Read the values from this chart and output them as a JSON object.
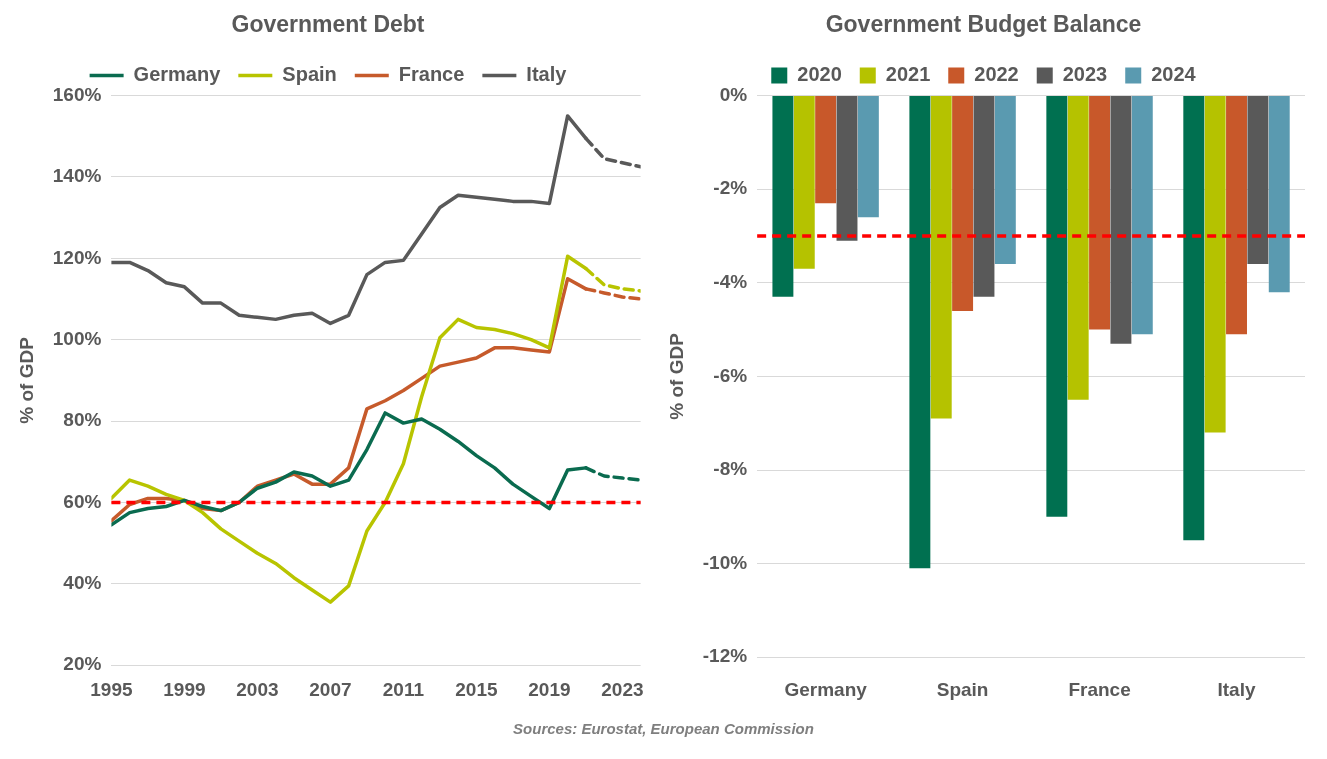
{
  "chart_data": [
    {
      "type": "line",
      "title": "Government Debt",
      "ylabel": "% of GDP",
      "xlim": [
        1995,
        2024
      ],
      "xticks": [
        1995,
        1999,
        2003,
        2007,
        2011,
        2015,
        2019,
        2023
      ],
      "ylim": [
        20,
        160
      ],
      "yticks": [
        {
          "value": 20,
          "label": "20%"
        },
        {
          "value": 40,
          "label": "40%"
        },
        {
          "value": 60,
          "label": "60%"
        },
        {
          "value": 80,
          "label": "80%"
        },
        {
          "value": 100,
          "label": "100%"
        },
        {
          "value": 120,
          "label": "120%"
        },
        {
          "value": 140,
          "label": "140%"
        },
        {
          "value": 160,
          "label": "160%"
        }
      ],
      "grid": "y",
      "legend": "top",
      "marker": "none",
      "line_style": "solid",
      "series": [
        {
          "name": "Germany",
          "color": "#0a6b4f",
          "x": [
            1995,
            1996,
            1997,
            1998,
            1999,
            2000,
            2001,
            2002,
            2003,
            2004,
            2005,
            2006,
            2007,
            2008,
            2009,
            2010,
            2011,
            2012,
            2013,
            2014,
            2015,
            2016,
            2017,
            2018,
            2019,
            2020,
            2021
          ],
          "values": [
            54.5,
            57.5,
            58.5,
            59,
            60.5,
            59,
            58,
            60,
            63.5,
            65,
            67.5,
            66.5,
            64,
            65.5,
            73,
            82,
            79.5,
            80.5,
            78,
            75,
            71.5,
            68.5,
            64.5,
            61.5,
            58.5,
            68,
            68.5
          ]
        },
        {
          "name": "Spain",
          "color": "#b8c400",
          "x": [
            1995,
            1996,
            1997,
            1998,
            1999,
            2000,
            2001,
            2002,
            2003,
            2004,
            2005,
            2006,
            2007,
            2008,
            2009,
            2010,
            2011,
            2012,
            2013,
            2014,
            2015,
            2016,
            2017,
            2018,
            2019,
            2020,
            2021
          ],
          "values": [
            61,
            65.5,
            64,
            62,
            60.5,
            57.5,
            53.5,
            50.5,
            47.5,
            45,
            41.5,
            38.5,
            35.5,
            39.5,
            53,
            60,
            69.5,
            86,
            100.5,
            105,
            103,
            102.5,
            101.5,
            100,
            98,
            120.5,
            117.5
          ]
        },
        {
          "name": "France",
          "color": "#c65a2b",
          "x": [
            1995,
            1996,
            1997,
            1998,
            1999,
            2000,
            2001,
            2002,
            2003,
            2004,
            2005,
            2006,
            2007,
            2008,
            2009,
            2010,
            2011,
            2012,
            2013,
            2014,
            2015,
            2016,
            2017,
            2018,
            2019,
            2020,
            2021
          ],
          "values": [
            55.5,
            59.5,
            61,
            61,
            60.5,
            58.5,
            58,
            60,
            64,
            65.5,
            67,
            64.5,
            64.5,
            68.5,
            83,
            85,
            87.5,
            90.5,
            93.5,
            94.5,
            95.5,
            98,
            98,
            97.5,
            97,
            115,
            112.5
          ]
        },
        {
          "name": "Italy",
          "color": "#595959",
          "x": [
            1995,
            1996,
            1997,
            1998,
            1999,
            2000,
            2001,
            2002,
            2003,
            2004,
            2005,
            2006,
            2007,
            2008,
            2009,
            2010,
            2011,
            2012,
            2013,
            2014,
            2015,
            2016,
            2017,
            2018,
            2019,
            2020,
            2021
          ],
          "values": [
            119,
            119,
            117,
            114,
            113,
            109,
            109,
            106,
            105.5,
            105,
            106,
            106.5,
            104,
            106,
            116,
            119,
            119.5,
            126,
            132.5,
            135.5,
            135,
            134.5,
            134,
            134,
            133.5,
            155,
            149.5
          ]
        },
        {
          "color": "#0a6b4f",
          "line_style": "dashed",
          "x": [
            2021,
            2022,
            2023,
            2024
          ],
          "values": [
            68.5,
            66.5,
            66,
            65.5
          ]
        },
        {
          "color": "#b8c400",
          "line_style": "dashed",
          "x": [
            2021,
            2022,
            2023,
            2024
          ],
          "values": [
            117.5,
            113.5,
            112.5,
            112
          ]
        },
        {
          "color": "#c65a2b",
          "line_style": "dashed",
          "x": [
            2021,
            2022,
            2023,
            2024
          ],
          "values": [
            112.5,
            111.5,
            110.5,
            110
          ]
        },
        {
          "color": "#595959",
          "line_style": "dashed",
          "x": [
            2021,
            2022,
            2023,
            2024
          ],
          "values": [
            149.5,
            144.5,
            143.5,
            142.5
          ]
        }
      ],
      "ref_lines": [
        {
          "axis": "y",
          "value": 60,
          "color": "#ff0000",
          "line_style": "dashed"
        }
      ]
    },
    {
      "type": "bar",
      "title": "Government Budget Balance",
      "ylabel": "% of GDP",
      "categories": [
        "Germany",
        "Spain",
        "France",
        "Italy"
      ],
      "ylim": [
        -12,
        0
      ],
      "yticks": [
        {
          "value": -12,
          "label": "-12%"
        },
        {
          "value": -10,
          "label": "-10%"
        },
        {
          "value": -8,
          "label": "-8%"
        },
        {
          "value": -6,
          "label": "-6%"
        },
        {
          "value": -4,
          "label": "-4%"
        },
        {
          "value": -2,
          "label": "-2%"
        },
        {
          "value": 0,
          "label": "0%"
        }
      ],
      "grid": "y",
      "legend": "top",
      "series": [
        {
          "name": "2020",
          "color": "#007050",
          "values": [
            -4.3,
            -10.1,
            -9.0,
            -9.5
          ]
        },
        {
          "name": "2021",
          "color": "#b5c200",
          "values": [
            -3.7,
            -6.9,
            -6.5,
            -7.2
          ]
        },
        {
          "name": "2022",
          "color": "#c8582a",
          "values": [
            -2.3,
            -4.6,
            -5.0,
            -5.1
          ]
        },
        {
          "name": "2023",
          "color": "#595959",
          "values": [
            -3.1,
            -4.3,
            -5.3,
            -3.6
          ]
        },
        {
          "name": "2024",
          "color": "#5a9ab0",
          "values": [
            -2.6,
            -3.6,
            -5.1,
            -4.2
          ]
        }
      ],
      "ref_lines": [
        {
          "axis": "y",
          "value": -3,
          "color": "#ff0000",
          "line_style": "dashed"
        }
      ],
      "annotations": [
        "Sources: Eurostat, European Commission"
      ]
    }
  ]
}
